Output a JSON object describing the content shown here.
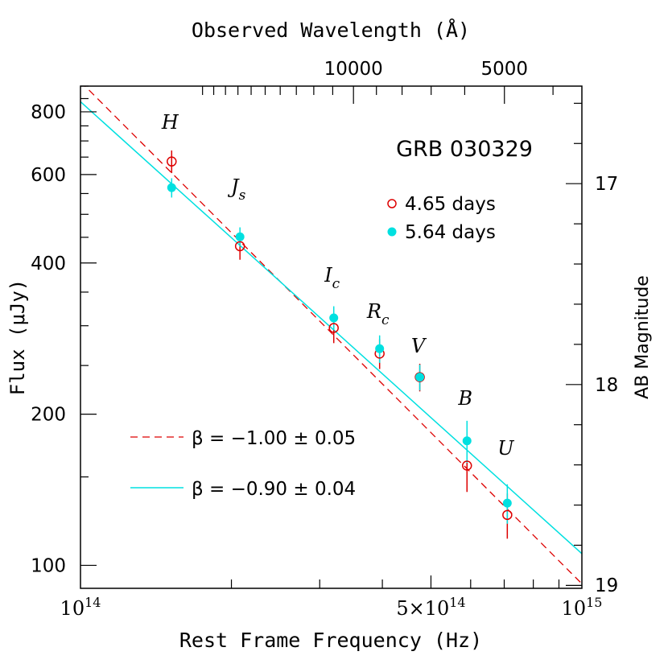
{
  "chart_data": {
    "type": "scatter",
    "title": "GRB 030329",
    "xlabel": "Rest Frame Frequency (Hz)",
    "ylabel": "Flux (μJy)",
    "x2label": "Observed Wavelength (Å)",
    "y2label": "AB Magnitude",
    "xscale": "log",
    "yscale": "log",
    "xlim": [
      100000000000000.0,
      1000000000000000.0
    ],
    "ylim": [
      90,
      900
    ],
    "x_tick_labels": [
      {
        "value": 100000000000000.0,
        "label": "10",
        "exp": "14"
      },
      {
        "value": 500000000000000.0,
        "label": "5×10",
        "exp": "14"
      },
      {
        "value": 1000000000000000.0,
        "label": "10",
        "exp": "15"
      }
    ],
    "y_tick_labels": [
      100,
      200,
      400,
      600,
      800
    ],
    "x2_tick_labels": [
      {
        "value": 10000,
        "label": "10000"
      },
      {
        "value": 5000,
        "label": "5000"
      }
    ],
    "y2_tick_labels": [
      17,
      18,
      19
    ],
    "bands": [
      {
        "label": "H",
        "sub": "",
        "x": 152000000000000.0
      },
      {
        "label": "J",
        "sub": "s",
        "x": 208000000000000.0
      },
      {
        "label": "I",
        "sub": "c",
        "x": 320000000000000.0
      },
      {
        "label": "R",
        "sub": "c",
        "x": 395000000000000.0
      },
      {
        "label": "V",
        "sub": "",
        "x": 475000000000000.0
      },
      {
        "label": "B",
        "sub": "",
        "x": 590000000000000.0
      },
      {
        "label": "U",
        "sub": "",
        "x": 710000000000000.0
      }
    ],
    "series": [
      {
        "name": "4.65 days",
        "marker": "open-circle",
        "color": "#dd0000",
        "x": [
          152000000000000.0,
          208000000000000.0,
          320000000000000.0,
          395000000000000.0,
          475000000000000.0,
          590000000000000.0,
          710000000000000.0
        ],
        "y": [
          637,
          432,
          297,
          264,
          237,
          158,
          126
        ],
        "yerr": [
          33,
          26,
          20,
          18,
          15,
          18,
          13
        ]
      },
      {
        "name": "5.64 days",
        "marker": "filled-circle",
        "color": "#00e0e0",
        "x": [
          152000000000000.0,
          208000000000000.0,
          320000000000000.0,
          395000000000000.0,
          475000000000000.0,
          590000000000000.0,
          710000000000000.0
        ],
        "y": [
          565,
          451,
          311,
          270,
          237,
          177,
          133
        ],
        "yerr": [
          25,
          20,
          17,
          17,
          14,
          17,
          12
        ]
      }
    ],
    "fits": [
      {
        "label": "β = −1.00 ± 0.05",
        "beta": -1.0,
        "norm_flux": 919,
        "color": "#dd0000",
        "style": "dashed"
      },
      {
        "label": "β = −0.90 ± 0.04",
        "beta": -0.9,
        "norm_flux": 838,
        "color": "#00e0e0",
        "style": "solid"
      }
    ]
  }
}
